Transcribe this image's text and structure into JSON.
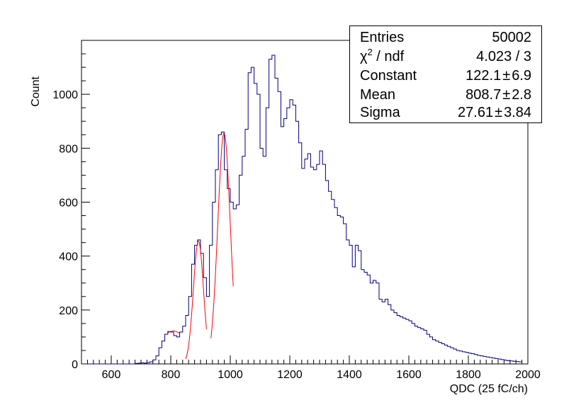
{
  "chart_data": {
    "type": "histogram",
    "xlabel": "QDC (25 fC/ch)",
    "ylabel": "Count",
    "xlim": [
      500,
      2000
    ],
    "ylim": [
      0,
      1200
    ],
    "grid": false,
    "x_ticks": [
      600,
      800,
      1000,
      1200,
      1400,
      1600,
      1800,
      2000
    ],
    "y_ticks": [
      0,
      200,
      400,
      600,
      800,
      1000
    ],
    "bin_width": 10,
    "bin_start": 500,
    "counts": [
      0,
      0,
      0,
      0,
      0,
      0,
      0,
      0,
      0,
      0,
      0,
      0,
      0,
      0,
      0,
      0,
      0,
      0,
      2,
      3,
      4,
      3,
      5,
      8,
      15,
      30,
      60,
      85,
      110,
      120,
      118,
      105,
      100,
      118,
      140,
      180,
      250,
      370,
      440,
      460,
      410,
      320,
      250,
      440,
      600,
      720,
      850,
      860,
      720,
      650,
      600,
      575,
      590,
      700,
      770,
      870,
      1080,
      1100,
      1040,
      1000,
      800,
      770,
      950,
      1130,
      1145,
      1060,
      1010,
      880,
      910,
      950,
      980,
      960,
      900,
      820,
      725,
      760,
      780,
      730,
      720,
      740,
      790,
      740,
      680,
      640,
      610,
      580,
      550,
      545,
      520,
      460,
      440,
      360,
      440,
      420,
      350,
      340,
      330,
      300,
      310,
      300,
      240,
      230,
      240,
      220,
      200,
      190,
      180,
      175,
      170,
      165,
      160,
      150,
      140,
      135,
      130,
      125,
      110,
      100,
      90,
      85,
      80,
      75,
      70,
      65,
      60,
      55,
      50,
      48,
      45,
      43,
      40,
      38,
      35,
      32,
      30,
      28,
      26,
      24,
      22,
      20,
      18,
      16,
      14,
      12,
      11,
      10,
      9,
      8
    ],
    "fits": [
      {
        "name": "fit-peak-1",
        "mean": 808.7,
        "sigma": 27.61,
        "constant": 122.1,
        "baseline": 88,
        "x_range": [
          790,
          830
        ]
      },
      {
        "name": "fit-peak-2",
        "mean": 893,
        "sigma": 17,
        "constant": 456,
        "baseline": 0,
        "x_range": [
          850,
          920
        ]
      },
      {
        "name": "fit-peak-3",
        "mean": 979,
        "sigma": 21,
        "constant": 856,
        "baseline": 0,
        "x_range": [
          935,
          1010
        ]
      }
    ],
    "colors": {
      "histogram": "#000080",
      "fit": "#ff0000",
      "axis": "#000000"
    }
  },
  "stats_box": {
    "entries_label": "Entries",
    "entries_value": "50002",
    "chi2_label_prefix": "χ",
    "chi2_label_sup": "2",
    "chi2_label_suffix": " / ndf",
    "chi2_value": "4.023 / 3",
    "constant_label": "Constant",
    "constant_value": "122.1",
    "constant_error": "6.9",
    "mean_label": "Mean",
    "mean_value": "808.7",
    "mean_error": "2.8",
    "sigma_label": "Sigma",
    "sigma_value": "27.61",
    "sigma_error": "3.84",
    "pm_symbol": "±"
  }
}
